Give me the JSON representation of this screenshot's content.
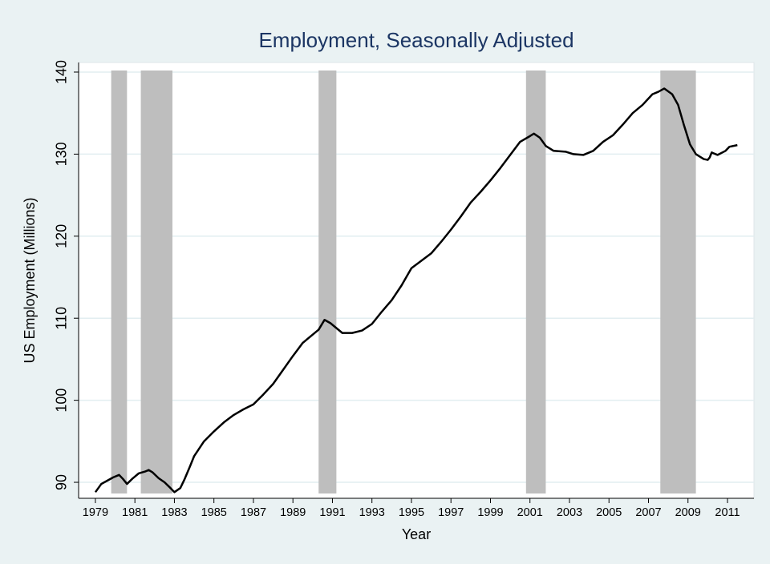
{
  "chart_data": {
    "type": "line",
    "title": "Employment, Seasonally Adjusted",
    "x_label": "Year",
    "y_label": "US Employment (Millions)",
    "x": [
      1979.0,
      1979.3,
      1979.6,
      1979.9,
      1980.2,
      1980.4,
      1980.6,
      1980.9,
      1981.2,
      1981.5,
      1981.7,
      1981.9,
      1982.2,
      1982.5,
      1982.8,
      1983.0,
      1983.3,
      1983.5,
      1983.8,
      1984.0,
      1984.5,
      1985.0,
      1985.5,
      1986.0,
      1986.5,
      1987.0,
      1987.5,
      1988.0,
      1988.5,
      1989.0,
      1989.5,
      1990.0,
      1990.3,
      1990.6,
      1990.9,
      1991.2,
      1991.5,
      1992.0,
      1992.5,
      1993.0,
      1993.5,
      1994.0,
      1994.5,
      1995.0,
      1995.5,
      1996.0,
      1996.5,
      1997.0,
      1997.5,
      1998.0,
      1998.5,
      1999.0,
      1999.5,
      2000.0,
      2000.5,
      2001.0,
      2001.2,
      2001.5,
      2001.8,
      2002.2,
      2002.8,
      2003.2,
      2003.7,
      2004.2,
      2004.7,
      2005.2,
      2005.7,
      2006.2,
      2006.7,
      2007.2,
      2007.5,
      2007.8,
      2008.2,
      2008.5,
      2008.8,
      2009.1,
      2009.4,
      2009.8,
      2010.0,
      2010.1,
      2010.2,
      2010.5,
      2010.9,
      2011.1,
      2011.5
    ],
    "series": [
      {
        "name": "US Employment",
        "color": "#000000",
        "values": [
          88.8,
          89.8,
          90.2,
          90.6,
          90.9,
          90.4,
          89.8,
          90.5,
          91.1,
          91.3,
          91.5,
          91.2,
          90.5,
          90.0,
          89.3,
          88.8,
          89.3,
          90.3,
          92.0,
          93.2,
          95.0,
          96.2,
          97.3,
          98.2,
          98.9,
          99.5,
          100.7,
          102.0,
          103.7,
          105.4,
          107.0,
          108.0,
          108.6,
          109.8,
          109.4,
          108.8,
          108.2,
          108.2,
          108.5,
          109.3,
          110.8,
          112.2,
          114.0,
          116.1,
          117.0,
          117.9,
          119.3,
          120.8,
          122.4,
          124.1,
          125.4,
          126.8,
          128.3,
          129.9,
          131.5,
          132.2,
          132.5,
          132.0,
          131.0,
          130.4,
          130.3,
          130.0,
          129.9,
          130.4,
          131.5,
          132.3,
          133.6,
          135.0,
          136.0,
          137.3,
          137.6,
          138.0,
          137.3,
          136.0,
          133.5,
          131.2,
          130.0,
          129.4,
          129.3,
          129.6,
          130.2,
          129.9,
          130.4,
          130.9,
          131.1
        ]
      }
    ],
    "recessions": [
      [
        1979.8,
        1980.6
      ],
      [
        1981.3,
        1982.9
      ],
      [
        1990.3,
        1991.2
      ],
      [
        2000.8,
        2001.8
      ],
      [
        2007.6,
        2009.4
      ]
    ],
    "recession_color": "#bebebe",
    "xlim": [
      1978.15,
      2012.34
    ],
    "ylim": [
      88.05,
      141.17
    ],
    "xticks": [
      1979,
      1981,
      1983,
      1985,
      1987,
      1989,
      1991,
      1993,
      1995,
      1997,
      1999,
      2001,
      2003,
      2005,
      2007,
      2009,
      2011
    ],
    "yticks": [
      90,
      100,
      110,
      120,
      130,
      140
    ],
    "grid": true
  }
}
